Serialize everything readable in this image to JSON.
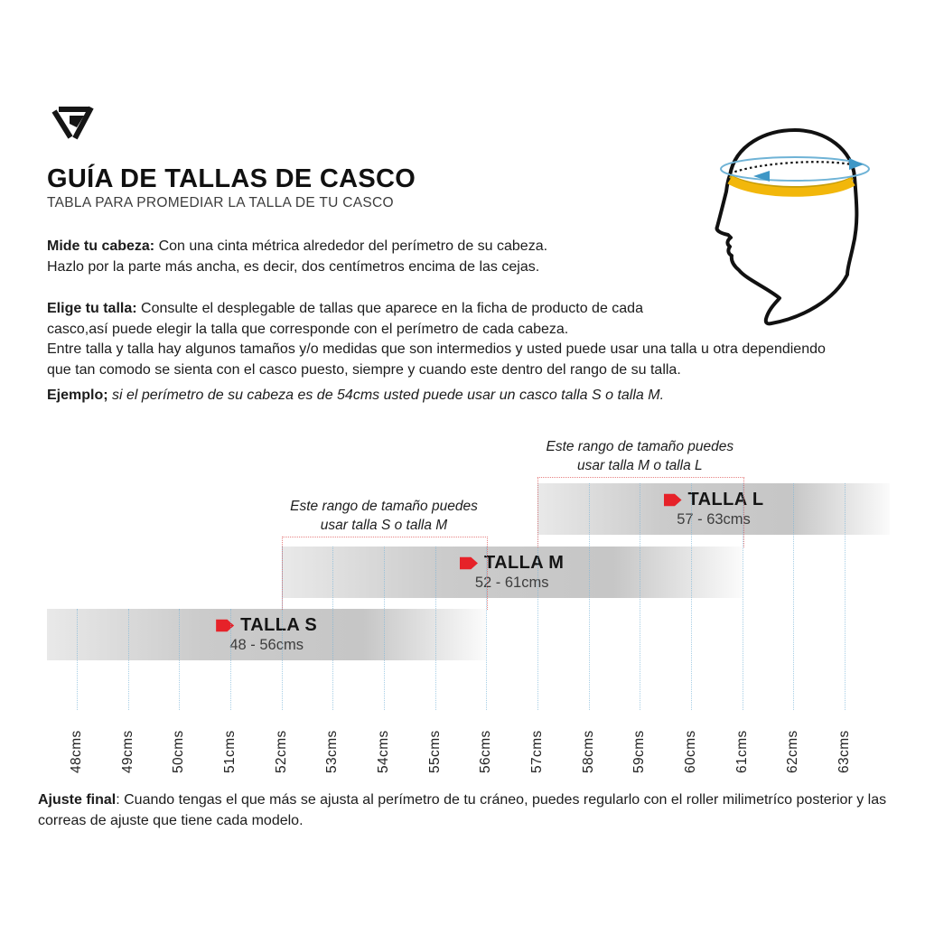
{
  "page": {
    "title": "GUÍA DE TALLAS DE CASCO",
    "subtitle": "TABLA PARA PROMEDIAR LA TALLA DE TU CASCO"
  },
  "intro": {
    "measure_lead": "Mide tu cabeza:",
    "measure_text": " Con una cinta métrica alrededor del perímetro de su cabeza.\nHazlo por la parte más ancha, es decir, dos centímetros encima de las cejas.",
    "choose_lead": "Elige tu talla:",
    "choose_text": " Consulte el desplegable de tallas que aparece en la ficha de producto de cada\ncasco,así puede elegir la talla que corresponde con el perímetro de cada cabeza.\nEntre talla y talla hay algunos tamaños y/o medidas que son intermedios y usted puede usar una talla u otra dependiendo\nque tan comodo se sienta con el casco puesto, siempre y cuando este dentro del rango de su talla.",
    "example_lead": "Ejemplo;",
    "example_text": " si el perímetro de su cabeza es de 54cms usted puede usar un casco talla S o talla M."
  },
  "chart_data": {
    "type": "bar",
    "orientation": "horizontal-ranges",
    "unit": "cms",
    "xlim": [
      48,
      63
    ],
    "grid": true,
    "legend": "none",
    "x_ticks": [
      "48cms",
      "49cms",
      "50cms",
      "51cms",
      "52cms",
      "53cms",
      "54cms",
      "55cms",
      "56cms",
      "57cms",
      "58cms",
      "59cms",
      "60cms",
      "61cms",
      "62cms",
      "63cms"
    ],
    "series": [
      {
        "name": "TALLA S",
        "range_label": "48 - 56cms",
        "min": 48,
        "max": 56
      },
      {
        "name": "TALLA M",
        "range_label": "52 - 61cms",
        "min": 52,
        "max": 61
      },
      {
        "name": "TALLA L",
        "range_label": "57 - 63cms",
        "min": 57,
        "max": 63
      }
    ],
    "overlaps": [
      {
        "min": 52,
        "max": 56,
        "note_line1": "Este rango de tamaño puedes",
        "note_line2": "usar talla S o talla M"
      },
      {
        "min": 57,
        "max": 61,
        "note_line1": "Este rango de tamaño puedes",
        "note_line2": "usar talla M o talla L"
      }
    ]
  },
  "footer": {
    "lead": "Ajuste final",
    "text": ": Cuando tengas el que más se ajusta al perímetro de tu cráneo, puedes regularlo con el roller milimetríco posterior y las\ncorreas de ajuste que tiene cada modelo."
  },
  "icons": {
    "brand": "brand-logo-icon",
    "size_tag": "size-tag-icon",
    "head": "head-measurement-illustration"
  },
  "colors": {
    "accent_red": "#e62229",
    "overlap_dotted_red": "#de5a5a",
    "grid_blue": "#78b4d7",
    "tape_yellow": "#f2b70b",
    "tape_blue": "#6fb3d6",
    "bar_gray": "#c6c6c6"
  }
}
